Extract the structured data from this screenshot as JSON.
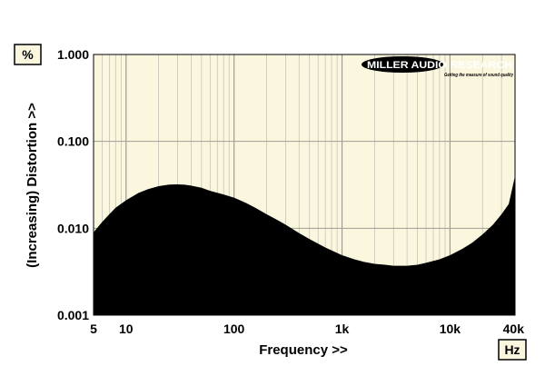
{
  "chart_data": {
    "type": "area",
    "title": "",
    "xlabel": "Frequency >>",
    "ylabel": "(Increasing) Distortion >>",
    "x_unit": "Hz",
    "y_unit": "%",
    "x_scale": "log",
    "y_scale": "log",
    "xlim": [
      5,
      40000
    ],
    "ylim": [
      0.001,
      1.0
    ],
    "x_ticks": [
      5,
      10,
      100,
      1000,
      10000,
      40000
    ],
    "x_tick_labels": [
      "5",
      "10",
      "100",
      "1k",
      "10k",
      "40k"
    ],
    "y_ticks": [
      0.001,
      0.01,
      0.1,
      1.0
    ],
    "y_tick_labels": [
      "0.001",
      "0.010",
      "0.100",
      "1.000"
    ],
    "grid": true,
    "colors": {
      "plot_background": "#fbf7df",
      "fill": "#000000",
      "grid": "#bdbdb2"
    },
    "series": [
      {
        "x": [
          5,
          6,
          7,
          8,
          10,
          13,
          16,
          20,
          25,
          30,
          35,
          40,
          50,
          60,
          80,
          100,
          130,
          160,
          200,
          250,
          300,
          400,
          500,
          700,
          1000,
          1300,
          1600,
          2000,
          2500,
          3000,
          3500,
          4000,
          5000,
          6000,
          8000,
          10000,
          13000,
          16000,
          20000,
          25000,
          30000,
          35000,
          40000
        ],
        "values": [
          0.009,
          0.0118,
          0.0145,
          0.0172,
          0.021,
          0.0255,
          0.0282,
          0.0305,
          0.0318,
          0.032,
          0.0317,
          0.031,
          0.0292,
          0.027,
          0.0245,
          0.0225,
          0.0195,
          0.017,
          0.0145,
          0.0125,
          0.011,
          0.0088,
          0.0075,
          0.006,
          0.0049,
          0.0044,
          0.0041,
          0.0039,
          0.0038,
          0.0037,
          0.0037,
          0.0037,
          0.0038,
          0.004,
          0.0044,
          0.0049,
          0.0058,
          0.0068,
          0.0085,
          0.011,
          0.0145,
          0.019,
          0.04
        ]
      }
    ]
  },
  "logo": {
    "name": "MILLER AUDIO RESEARCH",
    "tagline": "Getting the measure of sound quality"
  }
}
